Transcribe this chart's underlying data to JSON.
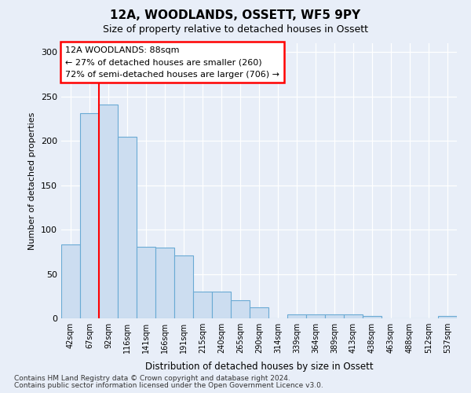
{
  "title": "12A, WOODLANDS, OSSETT, WF5 9PY",
  "subtitle": "Size of property relative to detached houses in Ossett",
  "xlabel": "Distribution of detached houses by size in Ossett",
  "ylabel": "Number of detached properties",
  "categories": [
    "42sqm",
    "67sqm",
    "92sqm",
    "116sqm",
    "141sqm",
    "166sqm",
    "191sqm",
    "215sqm",
    "240sqm",
    "265sqm",
    "290sqm",
    "314sqm",
    "339sqm",
    "364sqm",
    "389sqm",
    "413sqm",
    "438sqm",
    "463sqm",
    "488sqm",
    "512sqm",
    "537sqm"
  ],
  "values": [
    83,
    231,
    241,
    205,
    81,
    80,
    71,
    30,
    30,
    20,
    12,
    0,
    4,
    4,
    4,
    4,
    3,
    0,
    0,
    0,
    3
  ],
  "bar_color": "#ccddf0",
  "bar_edge_color": "#6aaad4",
  "marker_index": 1.5,
  "marker_label": "12A WOODLANDS: 88sqm",
  "annotation_line1": "← 27% of detached houses are smaller (260)",
  "annotation_line2": "72% of semi-detached houses are larger (706) →",
  "footer1": "Contains HM Land Registry data © Crown copyright and database right 2024.",
  "footer2": "Contains public sector information licensed under the Open Government Licence v3.0.",
  "bg_color": "#e8eef8",
  "grid_color": "#ffffff",
  "ylim": [
    0,
    310
  ],
  "yticks": [
    0,
    50,
    100,
    150,
    200,
    250,
    300
  ]
}
